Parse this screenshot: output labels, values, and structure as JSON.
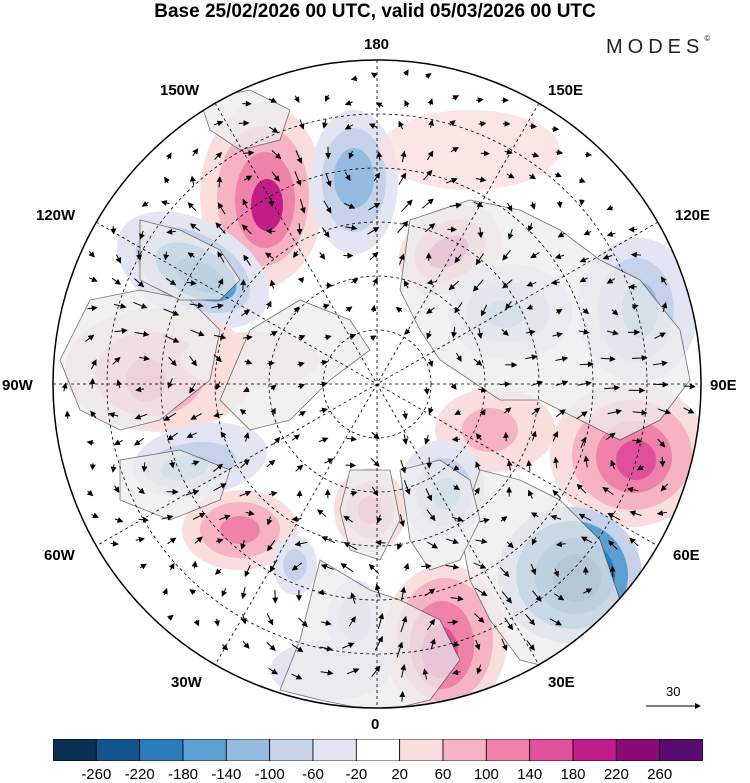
{
  "title": "Base 25/02/2026 00 UTC, valid 05/03/2026 00 UTC",
  "brand": "MODES",
  "brand_mark": "©",
  "longitude_labels": {
    "top": "180",
    "bottom": "0",
    "left": "90W",
    "right": "90E",
    "w150": "150W",
    "e150": "150E",
    "w120": "120W",
    "e120": "120E",
    "w60": "60W",
    "e60": "60E",
    "w30": "30W",
    "e30": "30E"
  },
  "reference_vector": {
    "label": "30"
  },
  "colorbar": {
    "ticks": [
      "-260",
      "-220",
      "-180",
      "-140",
      "-100",
      "-60",
      "-20",
      "20",
      "60",
      "100",
      "140",
      "180",
      "220",
      "260"
    ],
    "colors": [
      "#0c2f55",
      "#13568f",
      "#2d7cba",
      "#5b9fd0",
      "#93bce0",
      "#c5d2ea",
      "#e4e5f3",
      "#ffffff",
      "#fadede",
      "#f5b3c4",
      "#ef82a8",
      "#e04f9b",
      "#c01d88",
      "#8a0a78",
      "#5a0b70"
    ]
  },
  "anomalies": [
    {
      "name": "anomaly-pos-150W",
      "sign": "+",
      "strength": 3
    },
    {
      "name": "anomaly-neg-170W",
      "sign": "-",
      "strength": 2
    },
    {
      "name": "anomaly-neg-120W",
      "sign": "-",
      "strength": 3
    },
    {
      "name": "anomaly-pos-90W",
      "sign": "+",
      "strength": 2
    },
    {
      "name": "anomaly-pos-160E",
      "sign": "+",
      "strength": 2
    },
    {
      "name": "anomaly-neg-130E",
      "sign": "-",
      "strength": 2
    },
    {
      "name": "anomaly-neg-105E",
      "sign": "-",
      "strength": 2
    },
    {
      "name": "anomaly-pos-80E",
      "sign": "+",
      "strength": 3
    },
    {
      "name": "anomaly-neg-50E",
      "sign": "-",
      "strength": 4
    },
    {
      "name": "anomaly-pos-20E",
      "sign": "+",
      "strength": 3
    },
    {
      "name": "anomaly-neg-25E",
      "sign": "-",
      "strength": 2
    },
    {
      "name": "anomaly-pos-5W",
      "sign": "+",
      "strength": 2
    },
    {
      "name": "anomaly-neg-15E",
      "sign": "-",
      "strength": 2
    },
    {
      "name": "anomaly-pos-45W",
      "sign": "+",
      "strength": 2
    },
    {
      "name": "anomaly-neg-70W",
      "sign": "-",
      "strength": 2
    },
    {
      "name": "anomaly-neg-30W",
      "sign": "-",
      "strength": 1
    }
  ]
}
